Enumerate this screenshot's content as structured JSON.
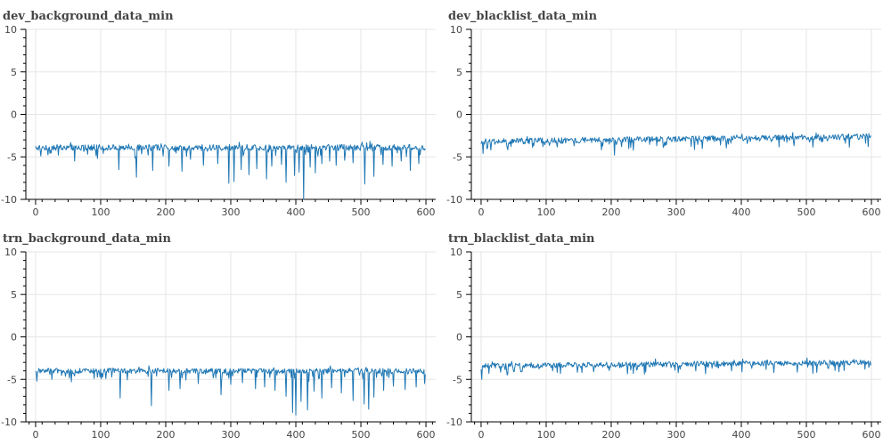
{
  "colors": {
    "series": "#1f77b4",
    "grid": "#e5e5e5",
    "text": "#444444",
    "axis": "#000000"
  },
  "chart_data": [
    {
      "type": "line",
      "title": "dev_background_data_min",
      "xlabel": "",
      "ylabel": "",
      "xlim": [
        -15,
        615
      ],
      "ylim": [
        -10,
        10
      ],
      "xticks": [
        0,
        100,
        200,
        300,
        400,
        500,
        600
      ],
      "yticks": [
        -10,
        -5,
        0,
        5,
        10
      ],
      "grid": true,
      "n_points": 600,
      "series": [
        {
          "base": -3.9,
          "noise": 0.35,
          "spikes": [
            [
              8,
              -4.9
            ],
            [
              22,
              -4.6
            ],
            [
              35,
              -4.8
            ],
            [
              60,
              -5.5
            ],
            [
              80,
              -4.7
            ],
            [
              95,
              -5.2
            ],
            [
              128,
              -6.5
            ],
            [
              155,
              -7.4
            ],
            [
              180,
              -6.6
            ],
            [
              205,
              -6.1
            ],
            [
              225,
              -6.7
            ],
            [
              238,
              -5.3
            ],
            [
              258,
              -6.0
            ],
            [
              280,
              -5.8
            ],
            [
              297,
              -8.1
            ],
            [
              305,
              -7.9
            ],
            [
              316,
              -6.5
            ],
            [
              328,
              -7.1
            ],
            [
              340,
              -6.4
            ],
            [
              355,
              -7.6
            ],
            [
              363,
              -6.1
            ],
            [
              378,
              -5.9
            ],
            [
              385,
              -8.0
            ],
            [
              398,
              -7.2
            ],
            [
              405,
              -6.8
            ],
            [
              412,
              -10.0
            ],
            [
              422,
              -6.2
            ],
            [
              430,
              -6.9
            ],
            [
              440,
              -5.8
            ],
            [
              452,
              -5.5
            ],
            [
              462,
              -6.0
            ],
            [
              475,
              -5.4
            ],
            [
              488,
              -5.7
            ],
            [
              506,
              -8.2
            ],
            [
              520,
              -7.3
            ],
            [
              534,
              -5.9
            ],
            [
              548,
              -6.1
            ],
            [
              562,
              -5.5
            ],
            [
              576,
              -6.6
            ],
            [
              589,
              -5.8
            ]
          ]
        }
      ]
    },
    {
      "type": "line",
      "title": "dev_blacklist_data_min",
      "xlabel": "",
      "ylabel": "",
      "xlim": [
        -15,
        615
      ],
      "ylim": [
        -10,
        10
      ],
      "xticks": [
        0,
        100,
        200,
        300,
        400,
        500,
        600
      ],
      "yticks": [
        -10,
        -5,
        0,
        5,
        10
      ],
      "grid": true,
      "n_points": 600,
      "series": [
        {
          "base_start": -3.2,
          "base_end": -2.6,
          "noise": 0.35,
          "spikes": [
            [
              3,
              -4.6
            ],
            [
              15,
              -4.2
            ],
            [
              40,
              -3.9
            ],
            [
              95,
              -3.8
            ],
            [
              205,
              -4.8
            ],
            [
              270,
              -3.7
            ],
            [
              380,
              -3.5
            ],
            [
              470,
              -3.3
            ],
            [
              560,
              -3.4
            ]
          ]
        }
      ]
    },
    {
      "type": "line",
      "title": "trn_background_data_min",
      "xlabel": "",
      "ylabel": "",
      "xlim": [
        -15,
        615
      ],
      "ylim": [
        -10,
        10
      ],
      "xticks": [
        0,
        100,
        200,
        300,
        400,
        500,
        600
      ],
      "yticks": [
        -10,
        -5,
        0,
        5,
        10
      ],
      "grid": true,
      "n_points": 600,
      "series": [
        {
          "base": -4.0,
          "noise": 0.3,
          "spikes": [
            [
              2,
              -5.2
            ],
            [
              25,
              -5.0
            ],
            [
              55,
              -5.3
            ],
            [
              90,
              -4.9
            ],
            [
              130,
              -7.2
            ],
            [
              178,
              -8.1
            ],
            [
              205,
              -6.3
            ],
            [
              222,
              -6.1
            ],
            [
              250,
              -5.5
            ],
            [
              285,
              -6.8
            ],
            [
              300,
              -5.6
            ],
            [
              318,
              -5.4
            ],
            [
              338,
              -6.1
            ],
            [
              352,
              -5.9
            ],
            [
              368,
              -6.3
            ],
            [
              385,
              -7.0
            ],
            [
              395,
              -8.9
            ],
            [
              400,
              -9.2
            ],
            [
              408,
              -7.6
            ],
            [
              418,
              -8.6
            ],
            [
              428,
              -6.4
            ],
            [
              440,
              -7.2
            ],
            [
              455,
              -6.0
            ],
            [
              470,
              -6.6
            ],
            [
              488,
              -7.5
            ],
            [
              505,
              -7.9
            ],
            [
              512,
              -8.5
            ],
            [
              520,
              -7.1
            ],
            [
              535,
              -6.3
            ],
            [
              550,
              -5.8
            ],
            [
              568,
              -6.2
            ],
            [
              585,
              -5.9
            ],
            [
              598,
              -5.5
            ]
          ]
        }
      ]
    },
    {
      "type": "line",
      "title": "trn_blacklist_data_min",
      "xlabel": "",
      "ylabel": "",
      "xlim": [
        -15,
        615
      ],
      "ylim": [
        -10,
        10
      ],
      "xticks": [
        0,
        100,
        200,
        300,
        400,
        500,
        600
      ],
      "yticks": [
        -10,
        -5,
        0,
        5,
        10
      ],
      "grid": true,
      "n_points": 600,
      "series": [
        {
          "base_start": -3.4,
          "base_end": -3.0,
          "noise": 0.3,
          "spikes": [
            [
              1,
              -5.0
            ],
            [
              12,
              -4.3
            ],
            [
              50,
              -4.1
            ],
            [
              110,
              -4.0
            ],
            [
              230,
              -3.9
            ],
            [
              330,
              -4.0
            ],
            [
              450,
              -4.2
            ],
            [
              510,
              -4.3
            ],
            [
              590,
              -3.8
            ]
          ]
        }
      ]
    }
  ]
}
